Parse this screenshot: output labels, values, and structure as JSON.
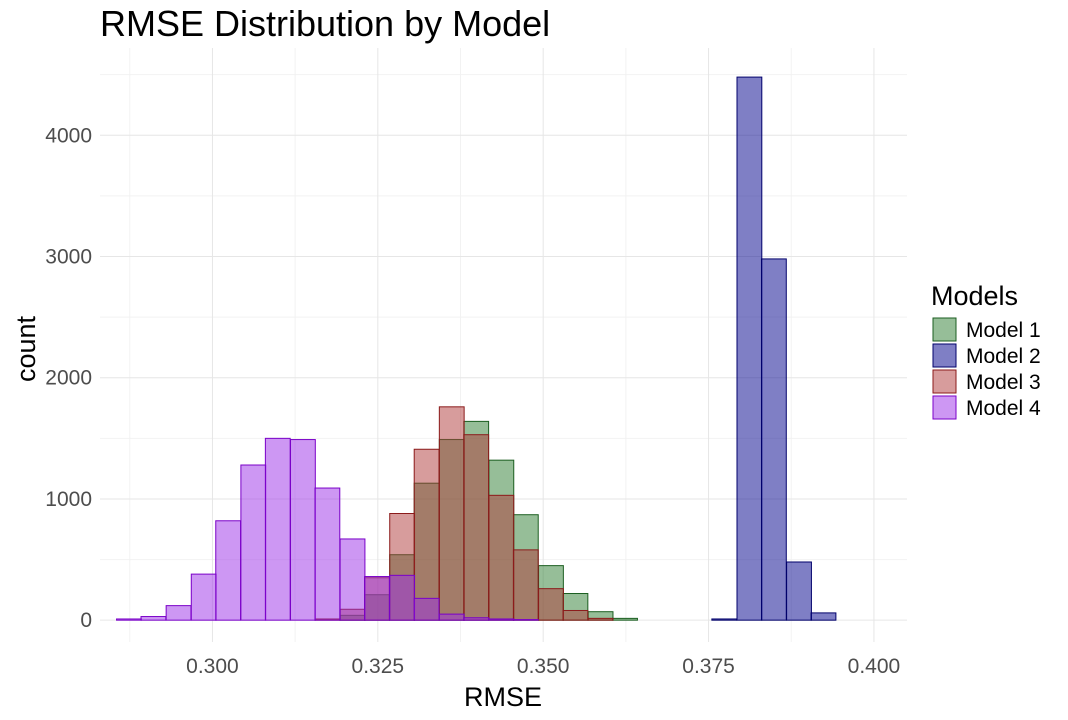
{
  "chart_data": {
    "type": "bar",
    "subtype": "overlaid-histogram",
    "title": "RMSE Distribution by Model",
    "xlabel": "RMSE",
    "ylabel": "count",
    "xlim": [
      0.283,
      0.405
    ],
    "ylim": [
      -180,
      4720
    ],
    "xticks": [
      0.3,
      0.325,
      0.35,
      0.375,
      0.4
    ],
    "xtick_labels": [
      "0.300",
      "0.325",
      "0.350",
      "0.375",
      "0.400"
    ],
    "yticks": [
      0,
      1000,
      2000,
      3000,
      4000
    ],
    "ytick_labels": [
      "0",
      "1000",
      "2000",
      "3000",
      "4000"
    ],
    "grid": true,
    "legend": {
      "title": "Models",
      "position": "right"
    },
    "bins_left": [
      0.2855,
      0.2892,
      0.293,
      0.2968,
      0.3005,
      0.3043,
      0.308,
      0.3118,
      0.3155,
      0.3193,
      0.323,
      0.3268,
      0.3305,
      0.3343,
      0.338,
      0.3418,
      0.3455,
      0.3493,
      0.353,
      0.3568,
      0.3605,
      0.3643,
      0.368,
      0.3718,
      0.3755,
      0.3793,
      0.383,
      0.3868,
      0.3905,
      0.3943,
      0.398
    ],
    "bin_width": 0.00375,
    "series": [
      {
        "name": "Model 1",
        "fill": "#2e7d32",
        "stroke": "#1b5e20",
        "values": [
          0,
          0,
          0,
          0,
          0,
          0,
          0,
          0,
          0,
          40,
          210,
          540,
          1130,
          1490,
          1640,
          1320,
          870,
          450,
          220,
          70,
          15,
          0,
          0,
          0,
          0,
          0,
          0,
          0,
          0,
          0,
          0
        ]
      },
      {
        "name": "Model 2",
        "fill": "#00008b",
        "stroke": "#00006b",
        "values": [
          0,
          0,
          0,
          0,
          0,
          0,
          0,
          0,
          0,
          0,
          0,
          0,
          0,
          0,
          0,
          0,
          0,
          0,
          0,
          0,
          0,
          0,
          0,
          0,
          10,
          4480,
          2980,
          480,
          60,
          0,
          0
        ]
      },
      {
        "name": "Model 3",
        "fill": "#b03a3a",
        "stroke": "#8b1a1a",
        "values": [
          0,
          0,
          0,
          0,
          0,
          0,
          0,
          0,
          10,
          90,
          350,
          880,
          1410,
          1760,
          1530,
          1030,
          580,
          260,
          80,
          15,
          0,
          0,
          0,
          0,
          0,
          0,
          0,
          0,
          0,
          0,
          0
        ]
      },
      {
        "name": "Model 4",
        "fill": "#9b30e8",
        "stroke": "#7a00c8",
        "values": [
          10,
          30,
          120,
          380,
          820,
          1280,
          1500,
          1490,
          1090,
          670,
          360,
          370,
          180,
          50,
          20,
          10,
          5,
          0,
          0,
          0,
          0,
          0,
          0,
          0,
          0,
          0,
          0,
          0,
          0,
          0,
          0
        ]
      }
    ]
  }
}
